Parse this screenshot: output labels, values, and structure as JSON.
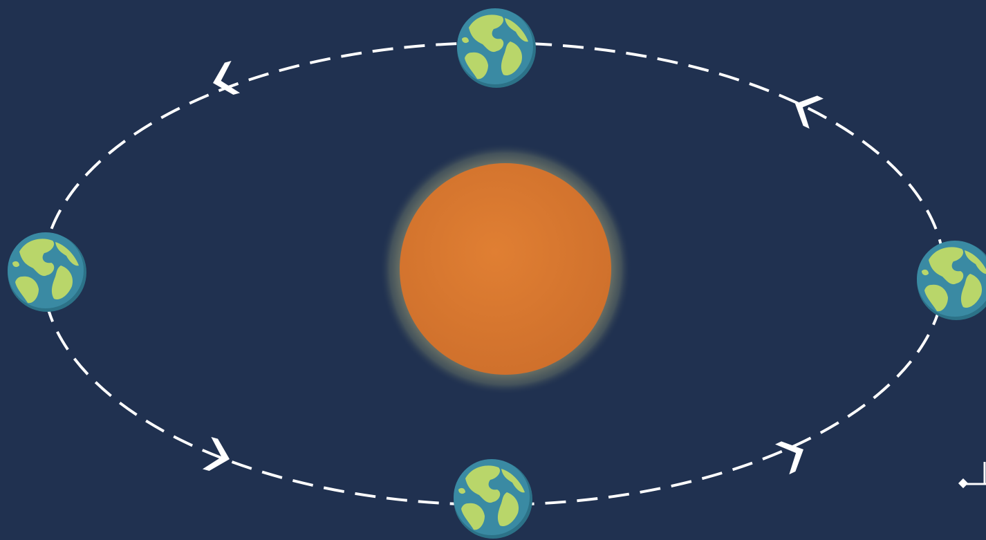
{
  "scene": {
    "background_color": "#203150",
    "orbit": {
      "color": "#ffffff",
      "style": "dashed",
      "direction": "counter-clockwise"
    },
    "sun": {
      "color": "#d9782f",
      "glow_color": "#7e8670"
    },
    "earth": {
      "ocean_color": "#3a8aa3",
      "land_color": "#b9d66a",
      "count": 4
    },
    "arrow_icon": "chevron-arrow-icon",
    "pointer_icon": "slider-pointer-icon"
  }
}
